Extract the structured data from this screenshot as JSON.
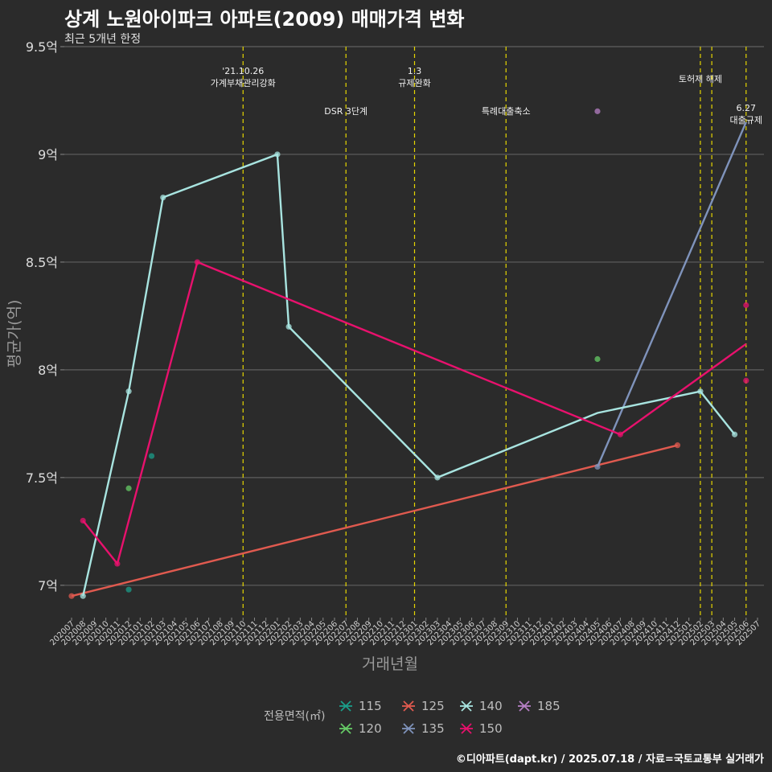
{
  "title": "상계 노원아이파크 아파트(2009) 매매가격 변화",
  "subtitle": "최근 5개년 한정",
  "credit": "©디아파트(dapt.kr) / 2025.07.18 / 자료=국토교통부 실거래가",
  "legend_title": "전용면적(㎡)",
  "chart_data": {
    "type": "line",
    "xlabel": "거래년월",
    "ylabel": "평균가(억)",
    "ylim": [
      6.85,
      9.5
    ],
    "yticks": [
      7,
      7.5,
      8,
      8.5,
      9,
      9.5
    ],
    "ytick_labels": [
      "7억",
      "7.5억",
      "8억",
      "8.5억",
      "9억",
      "9.5억"
    ],
    "x_start": "2020-07",
    "x_end": "2025-07",
    "x_tick_labels": [
      "202007",
      "202008",
      "202009",
      "202010",
      "202011",
      "202012",
      "202101",
      "202102",
      "202103",
      "202104",
      "202105",
      "202106",
      "202107",
      "202108",
      "202109",
      "202110",
      "202111",
      "202112",
      "202201",
      "202202",
      "202203",
      "202204",
      "202205",
      "202206",
      "202207",
      "202208",
      "202209",
      "202210",
      "202211",
      "202212",
      "202301",
      "202302",
      "202303",
      "202304",
      "202305",
      "202306",
      "202307",
      "202308",
      "202309",
      "202310",
      "202311",
      "202312",
      "202401",
      "202402",
      "202403",
      "202404",
      "202405",
      "202406",
      "202407",
      "202408",
      "202409",
      "202410",
      "202411",
      "202412",
      "202501",
      "202502",
      "202503",
      "202504",
      "202505",
      "202506",
      "202507"
    ],
    "grid": true,
    "legend": "bottom",
    "series": [
      {
        "name": "115",
        "color": "#1b9e8a",
        "line": [],
        "points": [
          {
            "x": "2020-12",
            "y": 6.98
          },
          {
            "x": "2021-02",
            "y": 7.6
          }
        ]
      },
      {
        "name": "120",
        "color": "#66cc66",
        "line": [],
        "points": [
          {
            "x": "2020-12",
            "y": 7.45
          },
          {
            "x": "2024-05",
            "y": 8.05
          }
        ]
      },
      {
        "name": "125",
        "color": "#e05a4f",
        "line": [
          {
            "x": "2020-07",
            "y": 6.95
          },
          {
            "x": "2024-12",
            "y": 7.65
          }
        ],
        "points": [
          {
            "x": "2020-07",
            "y": 6.95
          },
          {
            "x": "2024-12",
            "y": 7.65
          }
        ]
      },
      {
        "name": "135",
        "color": "#7f93bb",
        "line": [
          {
            "x": "2024-05",
            "y": 7.55
          },
          {
            "x": "2025-06",
            "y": 9.15
          }
        ],
        "points": [
          {
            "x": "2024-05",
            "y": 7.55
          }
        ]
      },
      {
        "name": "140",
        "color": "#a8e4e0",
        "line": [
          {
            "x": "2020-08",
            "y": 6.95
          },
          {
            "x": "2020-12",
            "y": 7.9
          },
          {
            "x": "2021-03",
            "y": 8.8
          },
          {
            "x": "2022-01",
            "y": 9.0
          },
          {
            "x": "2022-02",
            "y": 8.2
          },
          {
            "x": "2023-03",
            "y": 7.5
          },
          {
            "x": "2024-05",
            "y": 7.8
          },
          {
            "x": "2025-02",
            "y": 7.9
          },
          {
            "x": "2025-05",
            "y": 7.7
          }
        ],
        "points": [
          {
            "x": "2020-08",
            "y": 6.95
          },
          {
            "x": "2020-12",
            "y": 7.9
          },
          {
            "x": "2021-03",
            "y": 8.8
          },
          {
            "x": "2022-01",
            "y": 9.0
          },
          {
            "x": "2022-02",
            "y": 8.2
          },
          {
            "x": "2023-03",
            "y": 7.5
          },
          {
            "x": "2025-02",
            "y": 7.9
          },
          {
            "x": "2025-05",
            "y": 7.7
          }
        ]
      },
      {
        "name": "150",
        "color": "#e8116d",
        "line": [
          {
            "x": "2020-08",
            "y": 7.3
          },
          {
            "x": "2020-11",
            "y": 7.1
          },
          {
            "x": "2021-06",
            "y": 8.5
          },
          {
            "x": "2024-07",
            "y": 7.7
          },
          {
            "x": "2025-06",
            "y": 8.12
          }
        ],
        "points": [
          {
            "x": "2020-08",
            "y": 7.3
          },
          {
            "x": "2020-11",
            "y": 7.1
          },
          {
            "x": "2021-06",
            "y": 8.5
          },
          {
            "x": "2024-07",
            "y": 7.7
          },
          {
            "x": "2025-06",
            "y": 8.3
          },
          {
            "x": "2025-06",
            "y": 7.95
          }
        ]
      },
      {
        "name": "185",
        "color": "#b57fc4",
        "line": [],
        "points": [
          {
            "x": "2024-05",
            "y": 9.2
          }
        ]
      }
    ],
    "events": [
      {
        "date": "2021-10",
        "lines": [
          "'21.10.26",
          "가계부채관리강화"
        ],
        "row": 1
      },
      {
        "date": "2022-07",
        "lines": [
          "DSR 3단계"
        ],
        "row": 2
      },
      {
        "date": "2023-01",
        "lines": [
          "1.3",
          "규제완화"
        ],
        "row": 1
      },
      {
        "date": "2023-09",
        "lines": [
          "특례대출축소"
        ],
        "row": 2
      },
      {
        "date": "2025-02",
        "lines": [
          "토허제 해제"
        ],
        "row": 1.5
      },
      {
        "date": "2025-03",
        "lines": [],
        "row": 1
      },
      {
        "date": "2025-06",
        "lines": [
          "6.27",
          "대출규제"
        ],
        "row": 2
      }
    ]
  }
}
